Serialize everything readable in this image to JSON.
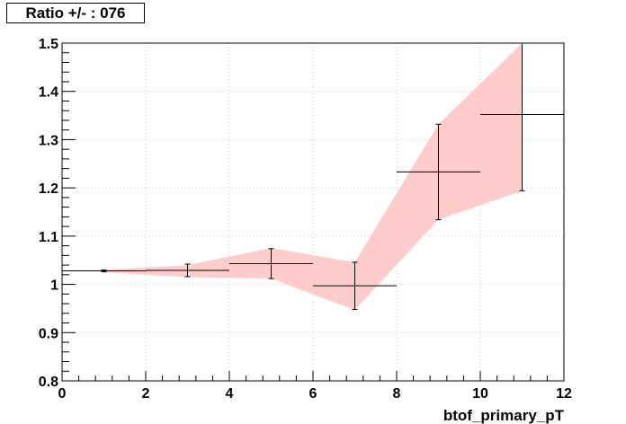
{
  "title_box": {
    "text": "Ratio +/- : 076"
  },
  "chart_data": {
    "type": "scatter",
    "title": "Ratio +/- : 076",
    "xlabel": "btof_primary_pT",
    "ylabel": "",
    "xlim": [
      0,
      12
    ],
    "ylim": [
      0.8,
      1.5
    ],
    "grid": true,
    "x_ticks": [
      0,
      2,
      4,
      6,
      8,
      10,
      12
    ],
    "x_tick_labels": [
      "0",
      "2",
      "4",
      "6",
      "8",
      "10",
      "12"
    ],
    "y_ticks": [
      0.8,
      0.9,
      1.0,
      1.1,
      1.2,
      1.3,
      1.4,
      1.5
    ],
    "y_tick_labels": [
      "0.8",
      "0.9",
      "1",
      "1.1",
      "1.2",
      "1.3",
      "1.4",
      "1.5"
    ],
    "points": [
      {
        "x": 1,
        "y": 1.028,
        "x_err": 1,
        "y_err": 0.002
      },
      {
        "x": 3,
        "y": 1.029,
        "x_err": 1,
        "y_err": 0.013
      },
      {
        "x": 5,
        "y": 1.043,
        "x_err": 1,
        "y_err": 0.031
      },
      {
        "x": 7,
        "y": 0.997,
        "x_err": 1,
        "y_err": 0.049
      },
      {
        "x": 9,
        "y": 1.233,
        "x_err": 1,
        "y_err": 0.099
      },
      {
        "x": 11,
        "y": 1.352,
        "x_err": 1,
        "y_err": 0.158
      }
    ],
    "band": {
      "x": [
        1,
        3,
        5,
        7,
        9,
        11
      ],
      "upper": [
        1.03,
        1.04,
        1.075,
        1.046,
        1.332,
        1.5
      ],
      "lower": [
        1.025,
        1.015,
        1.012,
        0.947,
        1.134,
        1.194
      ],
      "color": "#ffcccc"
    },
    "marker_color": "#000000",
    "grid_color": "#c8c8c8"
  }
}
